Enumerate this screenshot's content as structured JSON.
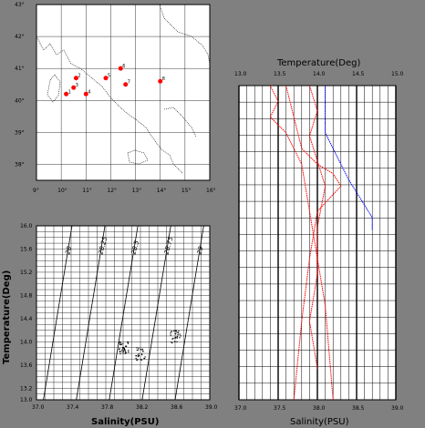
{
  "colors": {
    "background": "#808080",
    "panel": "#ffffff",
    "grid": "#000000",
    "station": "#ff0000",
    "profile_red": "#ff0000",
    "profile_blue": "#0000ff"
  },
  "chart_data": [
    {
      "type": "scatter",
      "panel": "map",
      "x_ticks": [
        "9°",
        "10°",
        "11°",
        "12°",
        "13°",
        "14°",
        "15°",
        "16°"
      ],
      "y_ticks": [
        "43°",
        "42°",
        "41°",
        "40°",
        "39°",
        "38°"
      ],
      "xlim": [
        9,
        16
      ],
      "ylim": [
        37.5,
        43
      ],
      "grid": true,
      "stations": [
        {
          "label": "1",
          "lon": 10.2,
          "lat": 40.2
        },
        {
          "label": "2",
          "lon": 10.6,
          "lat": 40.7
        },
        {
          "label": "3",
          "lon": 10.5,
          "lat": 40.4
        },
        {
          "label": "4",
          "lon": 11.0,
          "lat": 40.2
        },
        {
          "label": "5",
          "lon": 11.8,
          "lat": 40.7
        },
        {
          "label": "6",
          "lon": 12.4,
          "lat": 41.0
        },
        {
          "label": "7",
          "lon": 12.6,
          "lat": 40.5
        },
        {
          "label": "8",
          "lon": 14.0,
          "lat": 40.6
        }
      ]
    },
    {
      "type": "scatter",
      "panel": "ts_diagram",
      "xlabel": "Salinity(PSU)",
      "ylabel": "Temperature(Deg)",
      "xlim": [
        37.0,
        39.0
      ],
      "ylim": [
        13.0,
        16.0
      ],
      "x_ticks": [
        "37.0",
        "37.4",
        "37.8",
        "38.2",
        "38.6",
        "39.0"
      ],
      "y_ticks": [
        "16.0",
        "15.6",
        "15.2",
        "14.8",
        "14.4",
        "14.0",
        "13.6",
        "13.2",
        "13.0"
      ],
      "grid": true,
      "isopycnals": [
        "28",
        "28.25",
        "28.5",
        "28.75",
        "29"
      ],
      "clusters": [
        {
          "center_s": 38.0,
          "center_t": 13.9,
          "n": 40
        },
        {
          "center_s": 38.2,
          "center_t": 13.8,
          "n": 25
        },
        {
          "center_s": 38.6,
          "center_t": 14.1,
          "n": 30
        }
      ]
    },
    {
      "type": "line",
      "panel": "profiles",
      "top_axis_label": "Temperature(Deg)",
      "top_ticks": [
        "13.0",
        "13.5",
        "14.0",
        "14.5",
        "15.0"
      ],
      "top_lim": [
        13.0,
        15.0
      ],
      "bottom_axis_label": "Salinity(PSU)",
      "bottom_ticks": [
        "37.0",
        "37.5",
        "38.0",
        "38.5",
        "39.0"
      ],
      "bottom_lim": [
        37.0,
        39.0
      ],
      "grid": true,
      "series": [
        {
          "color": "red",
          "x": [
            37.4,
            37.5,
            37.4,
            37.6,
            37.7,
            37.8,
            37.9,
            38.0,
            38.1,
            38.2
          ],
          "depth": [
            0.0,
            0.05,
            0.1,
            0.15,
            0.2,
            0.25,
            0.4,
            0.55,
            0.7,
            1.0
          ]
        },
        {
          "color": "red",
          "x": [
            37.6,
            37.7,
            37.8,
            38.0,
            38.2,
            38.3,
            38.0,
            37.9,
            37.8,
            37.7
          ],
          "depth": [
            0.0,
            0.1,
            0.2,
            0.25,
            0.28,
            0.32,
            0.4,
            0.55,
            0.75,
            1.0
          ]
        },
        {
          "color": "red",
          "x": [
            37.9,
            38.0,
            37.9,
            38.0,
            38.1,
            38.0,
            38.0,
            37.9,
            38.0
          ],
          "depth": [
            0.0,
            0.08,
            0.16,
            0.24,
            0.32,
            0.45,
            0.6,
            0.75,
            0.9
          ]
        },
        {
          "color": "blue",
          "x": [
            38.1,
            38.1,
            38.1,
            38.2,
            38.3,
            38.4,
            38.5,
            38.6,
            38.7,
            38.7
          ],
          "depth": [
            0.0,
            0.08,
            0.15,
            0.2,
            0.25,
            0.3,
            0.34,
            0.38,
            0.42,
            0.46
          ]
        }
      ]
    }
  ]
}
